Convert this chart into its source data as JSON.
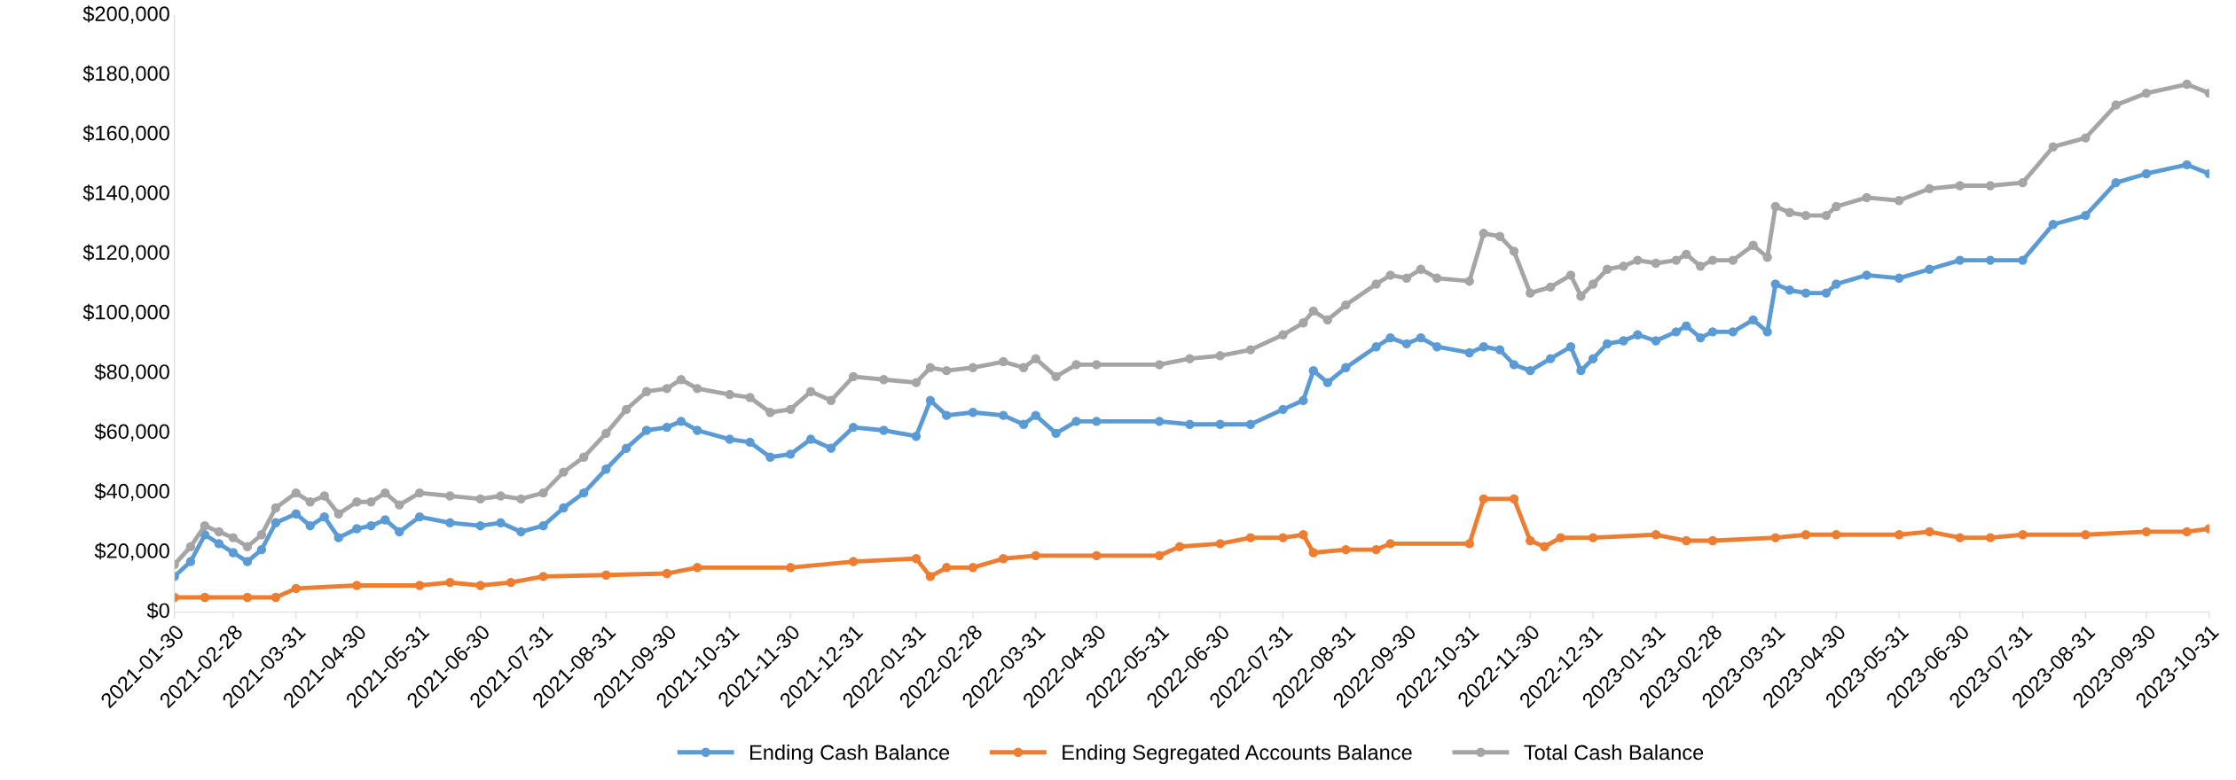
{
  "chart_data": {
    "type": "line",
    "xlim": [
      "2021-01-30",
      "2023-10-31"
    ],
    "xticks": [
      "2021-01-30",
      "2021-02-28",
      "2021-03-31",
      "2021-04-30",
      "2021-05-31",
      "2021-06-30",
      "2021-07-31",
      "2021-08-31",
      "2021-09-30",
      "2021-10-31",
      "2021-11-30",
      "2021-12-31",
      "2022-01-31",
      "2022-02-28",
      "2022-03-31",
      "2022-04-30",
      "2022-05-31",
      "2022-06-30",
      "2022-07-31",
      "2022-08-31",
      "2022-09-30",
      "2022-10-31",
      "2022-11-30",
      "2022-12-31",
      "2023-01-31",
      "2023-02-28",
      "2023-03-31",
      "2023-04-30",
      "2023-05-31",
      "2023-06-30",
      "2023-07-31",
      "2023-08-31",
      "2023-09-30",
      "2023-10-31"
    ],
    "ylim": [
      0,
      200000
    ],
    "yticks": [
      {
        "value": 0,
        "label": "$0"
      },
      {
        "value": 20000,
        "label": "$20,000"
      },
      {
        "value": 40000,
        "label": "$40,000"
      },
      {
        "value": 60000,
        "label": "$60,000"
      },
      {
        "value": 80000,
        "label": "$80,000"
      },
      {
        "value": 100000,
        "label": "$100,000"
      },
      {
        "value": 120000,
        "label": "$120,000"
      },
      {
        "value": 140000,
        "label": "$140,000"
      },
      {
        "value": 160000,
        "label": "$160,000"
      },
      {
        "value": 180000,
        "label": "$180,000"
      },
      {
        "value": 200000,
        "label": "$200,000"
      }
    ],
    "grid": false,
    "legend": "bottom",
    "marker": "circle",
    "line_style": "solid",
    "series": [
      {
        "name": "Ending Cash Balance",
        "color": "#5b9bd5",
        "x": [
          "2021-01-30",
          "2021-02-07",
          "2021-02-14",
          "2021-02-21",
          "2021-02-28",
          "2021-03-07",
          "2021-03-14",
          "2021-03-21",
          "2021-03-31",
          "2021-04-07",
          "2021-04-14",
          "2021-04-21",
          "2021-04-30",
          "2021-05-07",
          "2021-05-14",
          "2021-05-21",
          "2021-05-31",
          "2021-06-15",
          "2021-06-30",
          "2021-07-10",
          "2021-07-20",
          "2021-07-31",
          "2021-08-10",
          "2021-08-20",
          "2021-08-31",
          "2021-09-10",
          "2021-09-20",
          "2021-09-30",
          "2021-10-07",
          "2021-10-15",
          "2021-10-31",
          "2021-11-10",
          "2021-11-20",
          "2021-11-30",
          "2021-12-10",
          "2021-12-20",
          "2021-12-31",
          "2022-01-15",
          "2022-01-31",
          "2022-02-07",
          "2022-02-15",
          "2022-02-28",
          "2022-03-15",
          "2022-03-25",
          "2022-03-31",
          "2022-04-10",
          "2022-04-20",
          "2022-04-30",
          "2022-05-31",
          "2022-06-15",
          "2022-06-30",
          "2022-07-15",
          "2022-07-31",
          "2022-08-10",
          "2022-08-15",
          "2022-08-22",
          "2022-08-31",
          "2022-09-15",
          "2022-09-22",
          "2022-09-30",
          "2022-10-07",
          "2022-10-15",
          "2022-10-31",
          "2022-11-07",
          "2022-11-15",
          "2022-11-22",
          "2022-11-30",
          "2022-12-10",
          "2022-12-20",
          "2022-12-25",
          "2022-12-31",
          "2023-01-07",
          "2023-01-15",
          "2023-01-22",
          "2023-01-31",
          "2023-02-10",
          "2023-02-15",
          "2023-02-22",
          "2023-02-28",
          "2023-03-10",
          "2023-03-20",
          "2023-03-27",
          "2023-03-31",
          "2023-04-07",
          "2023-04-15",
          "2023-04-25",
          "2023-04-30",
          "2023-05-15",
          "2023-05-31",
          "2023-06-15",
          "2023-06-30",
          "2023-07-15",
          "2023-07-31",
          "2023-08-15",
          "2023-08-31",
          "2023-09-15",
          "2023-09-30",
          "2023-10-20",
          "2023-10-31"
        ],
        "values": [
          12000,
          17000,
          26000,
          23000,
          20000,
          17000,
          21000,
          30000,
          33000,
          29000,
          32000,
          25000,
          28000,
          29000,
          31000,
          27000,
          32000,
          30000,
          29000,
          30000,
          27000,
          29000,
          35000,
          40000,
          48000,
          55000,
          61000,
          62000,
          64000,
          61000,
          58000,
          57000,
          52000,
          53000,
          58000,
          55000,
          62000,
          61000,
          59000,
          71000,
          66000,
          67000,
          66000,
          63000,
          66000,
          60000,
          64000,
          64000,
          64000,
          63000,
          63000,
          63000,
          68000,
          71000,
          81000,
          77000,
          82000,
          89000,
          92000,
          90000,
          92000,
          89000,
          87000,
          89000,
          88000,
          83000,
          81000,
          85000,
          89000,
          81000,
          85000,
          90000,
          91000,
          93000,
          91000,
          94000,
          96000,
          92000,
          94000,
          94000,
          98000,
          94000,
          110000,
          108000,
          107000,
          107000,
          110000,
          113000,
          112000,
          115000,
          118000,
          118000,
          118000,
          130000,
          133000,
          144000,
          147000,
          150000,
          147000
        ]
      },
      {
        "name": "Ending Segregated Accounts Balance",
        "color": "#ed7d31",
        "x": [
          "2021-01-30",
          "2021-02-14",
          "2021-03-07",
          "2021-03-21",
          "2021-03-31",
          "2021-04-30",
          "2021-05-31",
          "2021-06-15",
          "2021-06-30",
          "2021-07-15",
          "2021-07-31",
          "2021-08-31",
          "2021-09-30",
          "2021-10-15",
          "2021-11-30",
          "2021-12-31",
          "2022-01-31",
          "2022-02-07",
          "2022-02-15",
          "2022-02-28",
          "2022-03-15",
          "2022-03-31",
          "2022-04-30",
          "2022-05-31",
          "2022-06-10",
          "2022-06-30",
          "2022-07-15",
          "2022-07-31",
          "2022-08-10",
          "2022-08-15",
          "2022-08-31",
          "2022-09-15",
          "2022-09-22",
          "2022-10-31",
          "2022-11-07",
          "2022-11-22",
          "2022-11-30",
          "2022-12-07",
          "2022-12-15",
          "2022-12-31",
          "2023-01-31",
          "2023-02-15",
          "2023-02-28",
          "2023-03-31",
          "2023-04-15",
          "2023-04-30",
          "2023-05-31",
          "2023-06-15",
          "2023-06-30",
          "2023-07-15",
          "2023-07-31",
          "2023-08-31",
          "2023-09-30",
          "2023-10-20",
          "2023-10-31"
        ],
        "values": [
          5000,
          5000,
          5000,
          5000,
          8000,
          9000,
          9000,
          10000,
          9000,
          10000,
          12000,
          12500,
          13000,
          15000,
          15000,
          17000,
          18000,
          12000,
          15000,
          15000,
          18000,
          19000,
          19000,
          19000,
          22000,
          23000,
          25000,
          25000,
          26000,
          20000,
          21000,
          21000,
          23000,
          23000,
          38000,
          38000,
          24000,
          22000,
          25000,
          25000,
          26000,
          24000,
          24000,
          25000,
          26000,
          26000,
          26000,
          27000,
          25000,
          25000,
          26000,
          26000,
          27000,
          27000,
          28000
        ]
      },
      {
        "name": "Total Cash Balance",
        "color": "#a5a5a5",
        "x": [
          "2021-01-30",
          "2021-02-07",
          "2021-02-14",
          "2021-02-21",
          "2021-02-28",
          "2021-03-07",
          "2021-03-14",
          "2021-03-21",
          "2021-03-31",
          "2021-04-07",
          "2021-04-14",
          "2021-04-21",
          "2021-04-30",
          "2021-05-07",
          "2021-05-14",
          "2021-05-21",
          "2021-05-31",
          "2021-06-15",
          "2021-06-30",
          "2021-07-10",
          "2021-07-20",
          "2021-07-31",
          "2021-08-10",
          "2021-08-20",
          "2021-08-31",
          "2021-09-10",
          "2021-09-20",
          "2021-09-30",
          "2021-10-07",
          "2021-10-15",
          "2021-10-31",
          "2021-11-10",
          "2021-11-20",
          "2021-11-30",
          "2021-12-10",
          "2021-12-20",
          "2021-12-31",
          "2022-01-15",
          "2022-01-31",
          "2022-02-07",
          "2022-02-15",
          "2022-02-28",
          "2022-03-15",
          "2022-03-25",
          "2022-03-31",
          "2022-04-10",
          "2022-04-20",
          "2022-04-30",
          "2022-05-31",
          "2022-06-15",
          "2022-06-30",
          "2022-07-15",
          "2022-07-31",
          "2022-08-10",
          "2022-08-15",
          "2022-08-22",
          "2022-08-31",
          "2022-09-15",
          "2022-09-22",
          "2022-09-30",
          "2022-10-07",
          "2022-10-15",
          "2022-10-31",
          "2022-11-07",
          "2022-11-15",
          "2022-11-22",
          "2022-11-30",
          "2022-12-10",
          "2022-12-20",
          "2022-12-25",
          "2022-12-31",
          "2023-01-07",
          "2023-01-15",
          "2023-01-22",
          "2023-01-31",
          "2023-02-10",
          "2023-02-15",
          "2023-02-22",
          "2023-02-28",
          "2023-03-10",
          "2023-03-20",
          "2023-03-27",
          "2023-03-31",
          "2023-04-07",
          "2023-04-15",
          "2023-04-25",
          "2023-04-30",
          "2023-05-15",
          "2023-05-31",
          "2023-06-15",
          "2023-06-30",
          "2023-07-15",
          "2023-07-31",
          "2023-08-15",
          "2023-08-31",
          "2023-09-15",
          "2023-09-30",
          "2023-10-20",
          "2023-10-31"
        ],
        "values": [
          16000,
          22000,
          29000,
          27000,
          25000,
          22000,
          26000,
          35000,
          40000,
          37000,
          39000,
          33000,
          37000,
          37000,
          40000,
          36000,
          40000,
          39000,
          38000,
          39000,
          38000,
          40000,
          47000,
          52000,
          60000,
          68000,
          74000,
          75000,
          78000,
          75000,
          73000,
          72000,
          67000,
          68000,
          74000,
          71000,
          79000,
          78000,
          77000,
          82000,
          81000,
          82000,
          84000,
          82000,
          85000,
          79000,
          83000,
          83000,
          83000,
          85000,
          86000,
          88000,
          93000,
          97000,
          101000,
          98000,
          103000,
          110000,
          113000,
          112000,
          115000,
          112000,
          111000,
          127000,
          126000,
          121000,
          107000,
          109000,
          113000,
          106000,
          110000,
          115000,
          116000,
          118000,
          117000,
          118000,
          120000,
          116000,
          118000,
          118000,
          123000,
          119000,
          136000,
          134000,
          133000,
          133000,
          136000,
          139000,
          138000,
          142000,
          143000,
          143000,
          144000,
          156000,
          159000,
          170000,
          174000,
          177000,
          174000
        ]
      }
    ]
  }
}
